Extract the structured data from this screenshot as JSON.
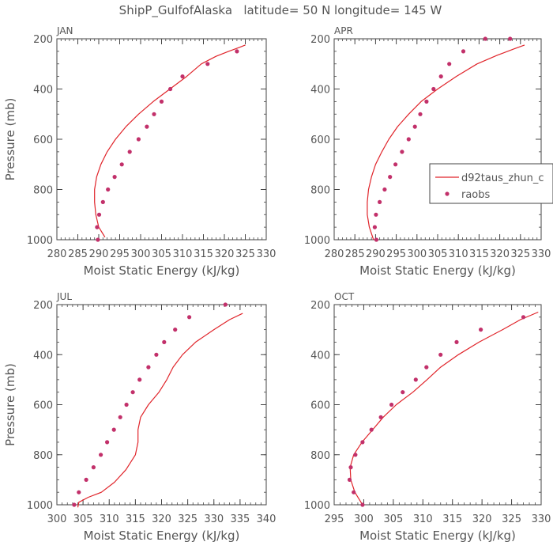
{
  "title": "ShipP_GulfofAlaska   latitude= 50 N longitude= 145 W",
  "legend": {
    "model_label": "d92taus_zhun_c",
    "obs_label": "raobs"
  },
  "colors": {
    "model_line": "#e0242a",
    "obs_marker": "#c2306a",
    "axis": "#444444",
    "text": "#555555"
  },
  "chart_data": [
    {
      "type": "line",
      "panel": "JAN",
      "title": "JAN",
      "xlabel": "Moist Static Energy (kJ/kg)",
      "ylabel": "Pressure (mb)",
      "xlim": [
        280,
        330
      ],
      "xticks": [
        280,
        285,
        290,
        295,
        300,
        305,
        310,
        315,
        320,
        325,
        330
      ],
      "ylim": [
        200,
        1000
      ],
      "yticks": [
        200,
        400,
        600,
        800,
        1000
      ],
      "y_inverted": true,
      "show_ylabel": true,
      "series": [
        {
          "name": "d92taus_zhun_c",
          "kind": "line",
          "x": [
            291.5,
            290,
            289.3,
            289,
            289,
            289.5,
            290.5,
            292,
            294,
            296.5,
            299.5,
            303,
            307,
            311,
            314.5,
            318,
            321,
            323.5,
            325
          ],
          "y": [
            990,
            950,
            900,
            850,
            800,
            750,
            700,
            650,
            600,
            550,
            500,
            450,
            400,
            350,
            300,
            270,
            250,
            235,
            225
          ]
        },
        {
          "name": "raobs",
          "kind": "scatter",
          "x": [
            289.8,
            289.6,
            290.1,
            291,
            292.2,
            293.8,
            295.5,
            297.4,
            299.5,
            301.5,
            303.2,
            305,
            307.1,
            310,
            316,
            323
          ],
          "y": [
            1000,
            950,
            900,
            850,
            800,
            750,
            700,
            650,
            600,
            550,
            500,
            450,
            400,
            350,
            300,
            250
          ]
        }
      ]
    },
    {
      "type": "line",
      "panel": "APR",
      "title": "APR",
      "xlabel": "Moist Static Energy (kJ/kg)",
      "ylabel": "",
      "xlim": [
        280,
        330
      ],
      "xticks": [
        280,
        285,
        290,
        295,
        300,
        305,
        310,
        315,
        320,
        325,
        330
      ],
      "ylim": [
        200,
        1000
      ],
      "yticks": [
        200,
        400,
        600,
        800,
        1000
      ],
      "y_inverted": true,
      "show_ylabel": false,
      "series": [
        {
          "name": "d92taus_zhun_c",
          "kind": "line",
          "x": [
            289.5,
            288.5,
            288,
            288,
            288.3,
            289,
            290,
            291.5,
            293.2,
            295.3,
            298,
            301,
            305,
            309.5,
            314.5,
            319.5,
            323.5,
            326
          ],
          "y": [
            1000,
            950,
            900,
            850,
            800,
            750,
            700,
            650,
            600,
            550,
            500,
            450,
            400,
            350,
            300,
            265,
            240,
            225
          ]
        },
        {
          "name": "raobs",
          "kind": "scatter",
          "x": [
            290.2,
            289.8,
            290.1,
            291,
            292.2,
            293.5,
            294.8,
            296.4,
            298,
            299.5,
            300.8,
            302.3,
            304,
            305.8,
            307.8,
            311.2,
            316.5,
            322.5
          ],
          "y": [
            1000,
            950,
            900,
            850,
            800,
            750,
            700,
            650,
            600,
            550,
            500,
            450,
            400,
            350,
            300,
            250,
            200,
            200
          ]
        }
      ]
    },
    {
      "type": "line",
      "panel": "JUL",
      "title": "JUL",
      "xlabel": "Moist Static Energy (kJ/kg)",
      "ylabel": "Pressure (mb)",
      "xlim": [
        300,
        340
      ],
      "xticks": [
        300,
        305,
        310,
        315,
        320,
        325,
        330,
        335,
        340
      ],
      "ylim": [
        200,
        1000
      ],
      "yticks": [
        200,
        400,
        600,
        800,
        1000
      ],
      "y_inverted": true,
      "show_ylabel": true,
      "series": [
        {
          "name": "d92taus_zhun_c",
          "kind": "line",
          "x": [
            304,
            304.2,
            306,
            308.5,
            311,
            313.2,
            315,
            315.5,
            315.5,
            316,
            317.5,
            319.5,
            321,
            322.2,
            324,
            326.5,
            330,
            333,
            335.5
          ],
          "y": [
            1010,
            990,
            970,
            950,
            910,
            860,
            800,
            750,
            700,
            650,
            600,
            550,
            500,
            450,
            400,
            350,
            300,
            260,
            235
          ]
        },
        {
          "name": "raobs",
          "kind": "scatter",
          "x": [
            303.3,
            304.2,
            305.6,
            307,
            308.4,
            309.6,
            310.9,
            312.1,
            313.3,
            314.5,
            315.8,
            317.5,
            319,
            320.5,
            322.6,
            325.3,
            332.2
          ],
          "y": [
            1000,
            950,
            900,
            850,
            800,
            750,
            700,
            650,
            600,
            550,
            500,
            450,
            400,
            350,
            300,
            250,
            200
          ]
        }
      ]
    },
    {
      "type": "line",
      "panel": "OCT",
      "title": "OCT",
      "xlabel": "Moist Static Energy (kJ/kg)",
      "ylabel": "",
      "xlim": [
        295,
        330
      ],
      "xticks": [
        295,
        300,
        305,
        310,
        315,
        320,
        325,
        330
      ],
      "ylim": [
        200,
        1000
      ],
      "yticks": [
        200,
        400,
        600,
        800,
        1000
      ],
      "y_inverted": true,
      "show_ylabel": false,
      "series": [
        {
          "name": "d92taus_zhun_c",
          "kind": "line",
          "x": [
            299.8,
            298.5,
            297.8,
            297.7,
            298.3,
            299.7,
            301.5,
            303.3,
            305.5,
            308.3,
            310.7,
            313,
            316,
            319.5,
            323.5,
            326.5,
            329.5
          ],
          "y": [
            1000,
            950,
            900,
            850,
            800,
            750,
            700,
            650,
            600,
            550,
            500,
            450,
            400,
            350,
            300,
            260,
            230
          ]
        },
        {
          "name": "raobs",
          "kind": "scatter",
          "x": [
            299.8,
            298.3,
            297.6,
            297.8,
            298.6,
            299.8,
            301.3,
            302.9,
            304.7,
            306.6,
            308.8,
            310.6,
            313,
            315.7,
            319.8,
            327
          ],
          "y": [
            1000,
            950,
            900,
            850,
            800,
            750,
            700,
            650,
            600,
            550,
            500,
            450,
            400,
            350,
            300,
            250
          ]
        }
      ]
    }
  ]
}
